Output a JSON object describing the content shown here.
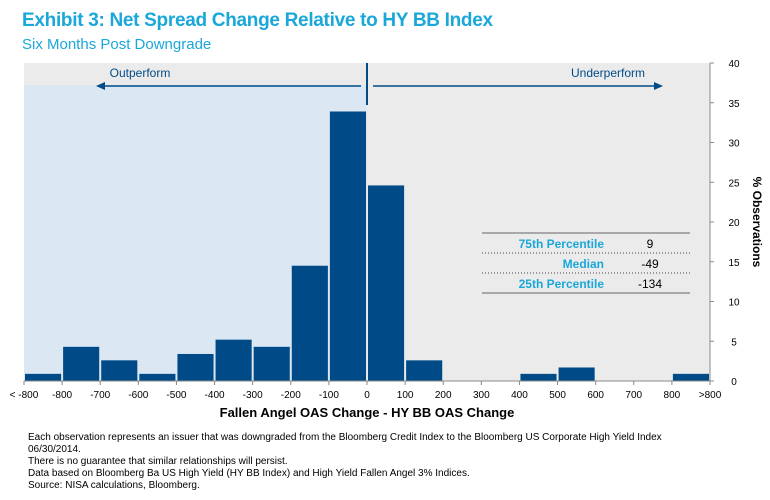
{
  "title": "Exhibit 3: Net Spread Change Relative to HY BB Index",
  "subtitle": "Six Months Post Downgrade",
  "chart_data": {
    "type": "bar",
    "categories": [
      "< -800",
      "-800",
      "-700",
      "-600",
      "-500",
      "-400",
      "-300",
      "-200",
      "-100",
      "0",
      "100",
      "200",
      "300",
      "400",
      "500",
      "600",
      "700",
      "800",
      ">800"
    ],
    "bins": [
      {
        "from": "< -800",
        "to": "-800",
        "value": 0.9
      },
      {
        "from": "-800",
        "to": "-700",
        "value": 4.3
      },
      {
        "from": "-700",
        "to": "-600",
        "value": 2.6
      },
      {
        "from": "-600",
        "to": "-500",
        "value": 0.9
      },
      {
        "from": "-500",
        "to": "-400",
        "value": 3.4
      },
      {
        "from": "-400",
        "to": "-300",
        "value": 5.2
      },
      {
        "from": "-300",
        "to": "-200",
        "value": 4.3
      },
      {
        "from": "-200",
        "to": "-100",
        "value": 14.5
      },
      {
        "from": "-100",
        "to": "0",
        "value": 33.9
      },
      {
        "from": "0",
        "to": "100",
        "value": 24.6
      },
      {
        "from": "100",
        "to": "200",
        "value": 2.6
      },
      {
        "from": "200",
        "to": "300",
        "value": 0
      },
      {
        "from": "300",
        "to": "400",
        "value": 0
      },
      {
        "from": "400",
        "to": "500",
        "value": 0.9
      },
      {
        "from": "500",
        "to": "600",
        "value": 1.7
      },
      {
        "from": "600",
        "to": "700",
        "value": 0
      },
      {
        "from": "700",
        "to": "800",
        "value": 0
      },
      {
        "from": "800",
        "to": ">800",
        "value": 0.9
      }
    ],
    "xlabel": "Fallen Angel OAS Change - HY BB OAS Change",
    "ylabel": "% Observations",
    "ylim": [
      0,
      40
    ],
    "yticks": [
      "0",
      "5",
      "10",
      "15",
      "20",
      "25",
      "30",
      "35",
      "40"
    ],
    "y_axis_side": "right",
    "grid": false,
    "colors": {
      "bar": "#004b87",
      "outperform_shade": "#dbe8f4",
      "plot_bg": "#ebebeb",
      "accent": "#1aa7d9"
    },
    "annotations": {
      "left_label": "Outperform",
      "right_label": "Underperform"
    },
    "stats_table": [
      {
        "label": "75th Percentile",
        "value": "9"
      },
      {
        "label": "Median",
        "value": "-49"
      },
      {
        "label": "25th Percentile",
        "value": "-134"
      }
    ]
  },
  "footnotes": [
    "Each observation represents an issuer that was downgraded from the Bloomberg Credit Index to the Bloomberg US Corporate High Yield Index",
    "06/30/2014.",
    "There is no guarantee that similar relationships will persist.",
    "Data based on Bloomberg Ba US High Yield (HY BB Index) and High Yield Fallen Angel 3% Indices.",
    "Source: NISA calculations, Bloomberg."
  ]
}
